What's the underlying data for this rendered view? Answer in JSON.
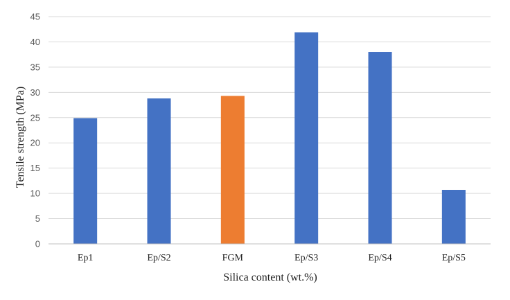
{
  "chart_data": {
    "type": "bar",
    "categories": [
      "Ep1",
      "Ep/S2",
      "FGM",
      "Ep/S3",
      "Ep/S4",
      "Ep/S5"
    ],
    "values": [
      24.9,
      28.8,
      29.3,
      41.9,
      38.0,
      10.7
    ],
    "bar_colors": [
      "#4472c4",
      "#4472c4",
      "#ed7d31",
      "#4472c4",
      "#4472c4",
      "#4472c4"
    ],
    "xlabel": "Silica content (wt.%)",
    "ylabel": "Tensile strength (MPa)",
    "ylim": [
      0,
      45
    ],
    "yticks": [
      0,
      5,
      10,
      15,
      20,
      25,
      30,
      35,
      40,
      45
    ],
    "grid": true,
    "legend": "none"
  },
  "colors": {
    "grid": "#d9d9d9",
    "axis": "#bfbfbf"
  }
}
